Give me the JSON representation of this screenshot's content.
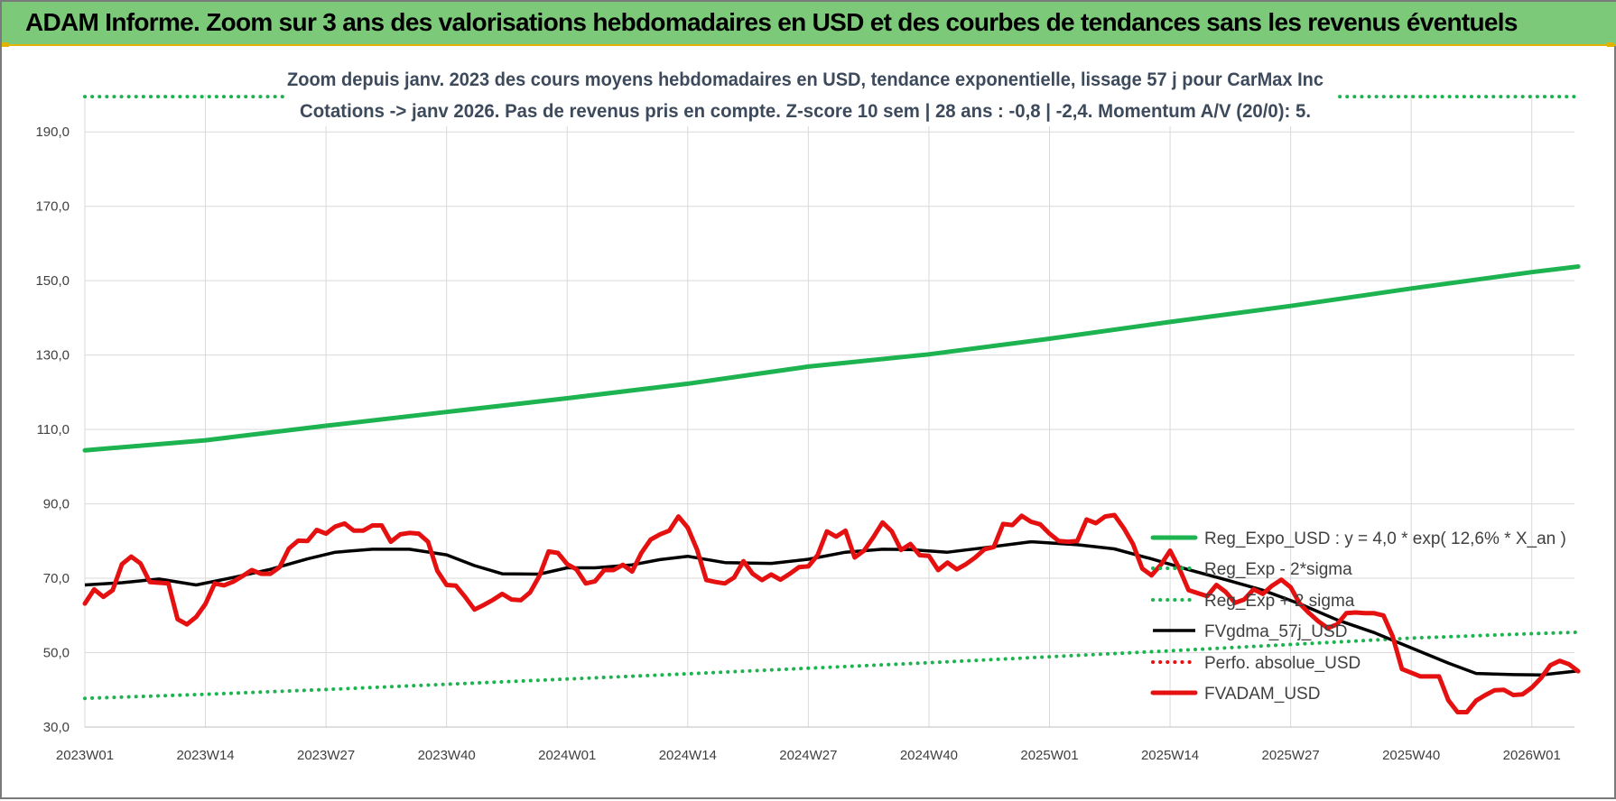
{
  "header": {
    "title": "ADAM Informe. Zoom sur 3 ans des valorisations hebdomadaires en USD et des courbes de tendances sans les revenus éventuels"
  },
  "chart_data": {
    "type": "line",
    "title": "Zoom depuis janv. 2023 des cours moyens hebdomadaires en USD, tendance exponentielle, lissage 57 j pour CarMax Inc",
    "subtitle": "Cotations -> janv 2026. Pas de revenus pris en compte. Z-score 10 sem | 28 ans : -0,8 | -2,4. Momentum A/V (20/0): 5.",
    "xlabel": "",
    "ylabel": "",
    "ylim": [
      30,
      190
    ],
    "grid": true,
    "legend_position": "right",
    "x_ticks": [
      "2023W01",
      "2023W14",
      "2023W27",
      "2023W40",
      "2024W01",
      "2024W14",
      "2024W27",
      "2024W40",
      "2025W01",
      "2025W14",
      "2025W27",
      "2025W40",
      "2026W01"
    ],
    "x_tick_positions": [
      1,
      14,
      27,
      40,
      53,
      66,
      79,
      92,
      105,
      118,
      131,
      144,
      157
    ],
    "x_max": 162,
    "y_ticks": [
      "30,0",
      "50,0",
      "70,0",
      "90,0",
      "110,0",
      "130,0",
      "150,0",
      "170,0",
      "190,0"
    ],
    "y_tick_values": [
      30,
      50,
      70,
      90,
      110,
      130,
      150,
      170,
      190
    ],
    "series": [
      {
        "name": "Reg_Expo_USD : y = 4,0 * exp( 12,6% *  X_an )",
        "color": "#1db350",
        "style": "solid-thick",
        "points": [
          [
            1,
            104.4
          ],
          [
            14,
            107.1
          ],
          [
            27,
            111.0
          ],
          [
            40,
            114.7
          ],
          [
            53,
            118.4
          ],
          [
            66,
            122.3
          ],
          [
            79,
            126.9
          ],
          [
            92,
            130.2
          ],
          [
            105,
            134.4
          ],
          [
            118,
            138.9
          ],
          [
            131,
            143.2
          ],
          [
            144,
            147.9
          ],
          [
            157,
            152.3
          ],
          [
            162,
            153.8
          ]
        ]
      },
      {
        "name": "Reg_Exp - 2*sigma",
        "color": "#1db350",
        "style": "dotted",
        "points": [
          [
            1,
            37.7
          ],
          [
            14,
            38.8
          ],
          [
            27,
            40.1
          ],
          [
            40,
            41.5
          ],
          [
            53,
            42.9
          ],
          [
            66,
            44.3
          ],
          [
            79,
            45.8
          ],
          [
            92,
            47.3
          ],
          [
            105,
            48.9
          ],
          [
            118,
            50.5
          ],
          [
            131,
            52.2
          ],
          [
            144,
            53.9
          ],
          [
            157,
            55.1
          ],
          [
            162,
            55.5
          ]
        ]
      },
      {
        "name": "Reg_Exp + 2 sigma",
        "color": "#1db350",
        "style": "dotted",
        "points": [
          [
            1,
            199.5
          ],
          [
            23,
            199.5
          ]
        ],
        "points2": [
          [
            130,
            199.5
          ],
          [
            162,
            199.5
          ]
        ]
      },
      {
        "name": "FVgdma_57j_USD",
        "color": "#000000",
        "style": "solid",
        "points": [
          [
            1,
            68.2
          ],
          [
            5,
            68.8
          ],
          [
            9,
            69.8
          ],
          [
            13,
            68.2
          ],
          [
            17,
            70.2
          ],
          [
            21,
            72.4
          ],
          [
            25,
            75.2
          ],
          [
            28,
            77.0
          ],
          [
            32,
            77.8
          ],
          [
            36,
            77.8
          ],
          [
            40,
            76.3
          ],
          [
            43,
            73.4
          ],
          [
            46,
            71.2
          ],
          [
            50,
            71.1
          ],
          [
            53,
            72.8
          ],
          [
            56,
            72.8
          ],
          [
            60,
            73.6
          ],
          [
            63,
            75.0
          ],
          [
            66,
            75.9
          ],
          [
            70,
            74.2
          ],
          [
            75,
            74.0
          ],
          [
            79,
            75.1
          ],
          [
            83,
            77.0
          ],
          [
            87,
            77.8
          ],
          [
            90,
            77.7
          ],
          [
            94,
            77.0
          ],
          [
            98,
            78.2
          ],
          [
            103,
            79.8
          ],
          [
            108,
            79.0
          ],
          [
            112,
            77.9
          ],
          [
            116,
            75.2
          ],
          [
            120,
            72.3
          ],
          [
            124,
            69.6
          ],
          [
            128,
            66.8
          ],
          [
            132,
            63.1
          ],
          [
            136,
            58.8
          ],
          [
            140,
            55.4
          ],
          [
            144,
            51.3
          ],
          [
            148,
            47.2
          ],
          [
            151,
            44.4
          ],
          [
            155,
            44.1
          ],
          [
            158,
            44.0
          ],
          [
            162,
            45.1
          ]
        ]
      },
      {
        "name": "Perfo. absolue_USD",
        "color": "#e51010",
        "style": "dotted",
        "points": []
      },
      {
        "name": "FVADAM_USD",
        "color": "#e51010",
        "style": "solid-thick",
        "points": [
          [
            1,
            63.2
          ],
          [
            2,
            67.0
          ],
          [
            3,
            65.0
          ],
          [
            4,
            66.8
          ],
          [
            5,
            73.8
          ],
          [
            6,
            75.8
          ],
          [
            7,
            74.0
          ],
          [
            8,
            69.0
          ],
          [
            9,
            68.8
          ],
          [
            10,
            68.6
          ],
          [
            11,
            59.0
          ],
          [
            12,
            57.6
          ],
          [
            13,
            59.6
          ],
          [
            14,
            63.1
          ],
          [
            15,
            68.6
          ],
          [
            16,
            68.1
          ],
          [
            17,
            69.1
          ],
          [
            18,
            70.6
          ],
          [
            19,
            72.2
          ],
          [
            20,
            71.2
          ],
          [
            21,
            71.2
          ],
          [
            22,
            73.0
          ],
          [
            23,
            78.0
          ],
          [
            24,
            80.1
          ],
          [
            25,
            80.0
          ],
          [
            26,
            83.0
          ],
          [
            27,
            82.0
          ],
          [
            28,
            83.9
          ],
          [
            29,
            84.7
          ],
          [
            30,
            82.8
          ],
          [
            31,
            82.8
          ],
          [
            32,
            84.2
          ],
          [
            33,
            84.2
          ],
          [
            34,
            79.8
          ],
          [
            35,
            81.8
          ],
          [
            36,
            82.2
          ],
          [
            37,
            82.0
          ],
          [
            38,
            79.8
          ],
          [
            39,
            72.0
          ],
          [
            40,
            68.2
          ],
          [
            41,
            68.0
          ],
          [
            42,
            65.0
          ],
          [
            43,
            61.6
          ],
          [
            44,
            62.8
          ],
          [
            45,
            64.2
          ],
          [
            46,
            65.8
          ],
          [
            47,
            64.3
          ],
          [
            48,
            64.1
          ],
          [
            49,
            66.2
          ],
          [
            50,
            70.6
          ],
          [
            51,
            77.2
          ],
          [
            52,
            76.8
          ],
          [
            53,
            73.8
          ],
          [
            54,
            72.4
          ],
          [
            55,
            68.6
          ],
          [
            56,
            69.2
          ],
          [
            57,
            72.2
          ],
          [
            58,
            72.2
          ],
          [
            59,
            73.6
          ],
          [
            60,
            71.8
          ],
          [
            61,
            76.8
          ],
          [
            62,
            80.4
          ],
          [
            63,
            81.8
          ],
          [
            64,
            82.8
          ],
          [
            65,
            86.6
          ],
          [
            66,
            83.6
          ],
          [
            67,
            77.7
          ],
          [
            68,
            69.5
          ],
          [
            69,
            69.0
          ],
          [
            70,
            68.6
          ],
          [
            71,
            70.2
          ],
          [
            72,
            74.6
          ],
          [
            73,
            71.2
          ],
          [
            74,
            69.5
          ],
          [
            75,
            71.0
          ],
          [
            76,
            69.6
          ],
          [
            77,
            71.2
          ],
          [
            78,
            73.0
          ],
          [
            79,
            73.2
          ],
          [
            80,
            76.2
          ],
          [
            81,
            82.6
          ],
          [
            82,
            81.2
          ],
          [
            83,
            82.8
          ],
          [
            84,
            75.6
          ],
          [
            85,
            77.4
          ],
          [
            86,
            81.0
          ],
          [
            87,
            85.0
          ],
          [
            88,
            82.6
          ],
          [
            89,
            77.6
          ],
          [
            90,
            79.2
          ],
          [
            91,
            76.2
          ],
          [
            92,
            76.0
          ],
          [
            93,
            72.2
          ],
          [
            94,
            74.2
          ],
          [
            95,
            72.4
          ],
          [
            96,
            73.8
          ],
          [
            97,
            75.6
          ],
          [
            98,
            77.8
          ],
          [
            99,
            78.4
          ],
          [
            100,
            84.6
          ],
          [
            101,
            84.3
          ],
          [
            102,
            86.8
          ],
          [
            103,
            85.2
          ],
          [
            104,
            84.5
          ],
          [
            105,
            82.0
          ],
          [
            106,
            80.0
          ],
          [
            107,
            79.8
          ],
          [
            108,
            80.0
          ],
          [
            109,
            85.8
          ],
          [
            110,
            84.8
          ],
          [
            111,
            86.6
          ],
          [
            112,
            87.0
          ],
          [
            113,
            83.5
          ],
          [
            114,
            79.2
          ],
          [
            115,
            72.6
          ],
          [
            116,
            70.8
          ],
          [
            117,
            73.6
          ],
          [
            118,
            77.4
          ],
          [
            119,
            72.6
          ],
          [
            120,
            66.8
          ],
          [
            121,
            66.0
          ],
          [
            122,
            65.2
          ],
          [
            123,
            68.2
          ],
          [
            124,
            66.3
          ],
          [
            125,
            63.4
          ],
          [
            126,
            64.3
          ],
          [
            127,
            67.0
          ],
          [
            128,
            65.8
          ],
          [
            129,
            68.0
          ],
          [
            130,
            69.6
          ],
          [
            131,
            67.6
          ],
          [
            132,
            63.1
          ],
          [
            133,
            60.6
          ],
          [
            134,
            58.4
          ],
          [
            135,
            56.6
          ],
          [
            136,
            57.6
          ],
          [
            137,
            60.6
          ],
          [
            138,
            60.8
          ],
          [
            139,
            60.6
          ],
          [
            140,
            60.6
          ],
          [
            141,
            60.0
          ],
          [
            142,
            54.4
          ],
          [
            143,
            45.6
          ],
          [
            144,
            44.6
          ],
          [
            145,
            43.6
          ],
          [
            146,
            43.6
          ],
          [
            147,
            43.6
          ],
          [
            148,
            37.2
          ],
          [
            149,
            34.0
          ],
          [
            150,
            34.0
          ],
          [
            151,
            37.1
          ],
          [
            152,
            38.6
          ],
          [
            153,
            39.9
          ],
          [
            154,
            40.0
          ],
          [
            155,
            38.6
          ],
          [
            156,
            38.8
          ],
          [
            157,
            40.6
          ],
          [
            158,
            43.2
          ],
          [
            159,
            46.6
          ],
          [
            160,
            47.8
          ],
          [
            161,
            46.9
          ],
          [
            162,
            45.0
          ]
        ]
      }
    ]
  }
}
